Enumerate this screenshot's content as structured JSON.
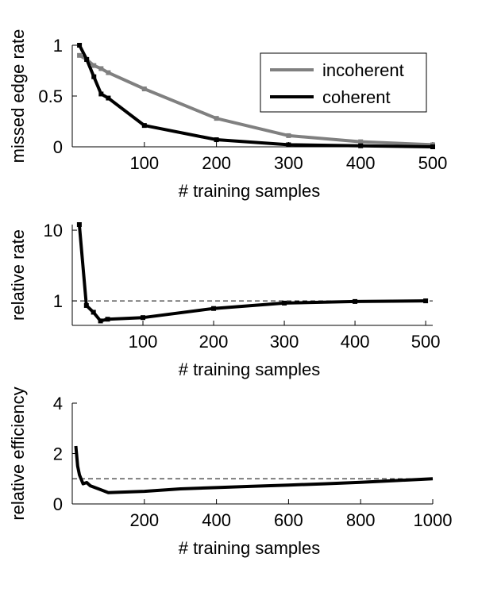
{
  "chart_data": [
    {
      "type": "line",
      "xlabel": "# training samples",
      "ylabel": "missed edge rate",
      "xlim": [
        0,
        500
      ],
      "ylim": [
        0,
        1
      ],
      "xticks": [
        100,
        200,
        300,
        400,
        500
      ],
      "yticks": [
        0,
        0.5,
        1
      ],
      "xtick_labels": [
        "100",
        "200",
        "300",
        "400",
        "500"
      ],
      "ytick_labels": [
        "0",
        "0.5",
        "1"
      ],
      "legend": "top-right",
      "series": [
        {
          "name": "incoherent",
          "color": "#808080",
          "x": [
            10,
            20,
            30,
            40,
            50,
            100,
            200,
            300,
            400,
            500
          ],
          "y": [
            0.9,
            0.86,
            0.8,
            0.77,
            0.73,
            0.57,
            0.28,
            0.11,
            0.05,
            0.02
          ]
        },
        {
          "name": "coherent",
          "color": "#000000",
          "x": [
            10,
            20,
            30,
            40,
            50,
            100,
            200,
            300,
            400,
            500
          ],
          "y": [
            1.0,
            0.86,
            0.69,
            0.52,
            0.48,
            0.21,
            0.07,
            0.02,
            0.01,
            0.0
          ]
        }
      ]
    },
    {
      "type": "line",
      "xlabel": "# training samples",
      "ylabel": "relative rate",
      "xlim": [
        0,
        510
      ],
      "ylim": [
        0.45,
        12
      ],
      "yscale": "log",
      "xticks": [
        100,
        200,
        300,
        400,
        500
      ],
      "yticks": [
        1,
        10
      ],
      "xtick_labels": [
        "100",
        "200",
        "300",
        "400",
        "500"
      ],
      "ytick_labels": [
        "1",
        "10"
      ],
      "reference_line": 1,
      "series": [
        {
          "name": "",
          "color": "#000000",
          "x": [
            10,
            20,
            30,
            40,
            50,
            100,
            200,
            300,
            400,
            500
          ],
          "y": [
            12,
            0.86,
            0.69,
            0.52,
            0.55,
            0.58,
            0.78,
            0.93,
            0.98,
            1.0
          ]
        }
      ]
    },
    {
      "type": "line",
      "xlabel": "# training samples",
      "ylabel": "relative efficiency",
      "xlim": [
        0,
        1000
      ],
      "ylim": [
        0,
        4
      ],
      "xticks": [
        200,
        400,
        600,
        800,
        1000
      ],
      "yticks": [
        0,
        2,
        4
      ],
      "xtick_labels": [
        "200",
        "400",
        "600",
        "800",
        "1000"
      ],
      "ytick_labels": [
        "0",
        "2",
        "4"
      ],
      "reference_line": 1,
      "series": [
        {
          "name": "",
          "color": "#000000",
          "x": [
            10,
            15,
            20,
            30,
            40,
            50,
            100,
            200,
            300,
            400,
            500,
            600,
            700,
            800,
            900,
            1000
          ],
          "y": [
            2.3,
            1.5,
            1.15,
            0.8,
            0.85,
            0.72,
            0.45,
            0.5,
            0.6,
            0.65,
            0.7,
            0.75,
            0.8,
            0.86,
            0.93,
            1.0
          ]
        }
      ]
    }
  ]
}
